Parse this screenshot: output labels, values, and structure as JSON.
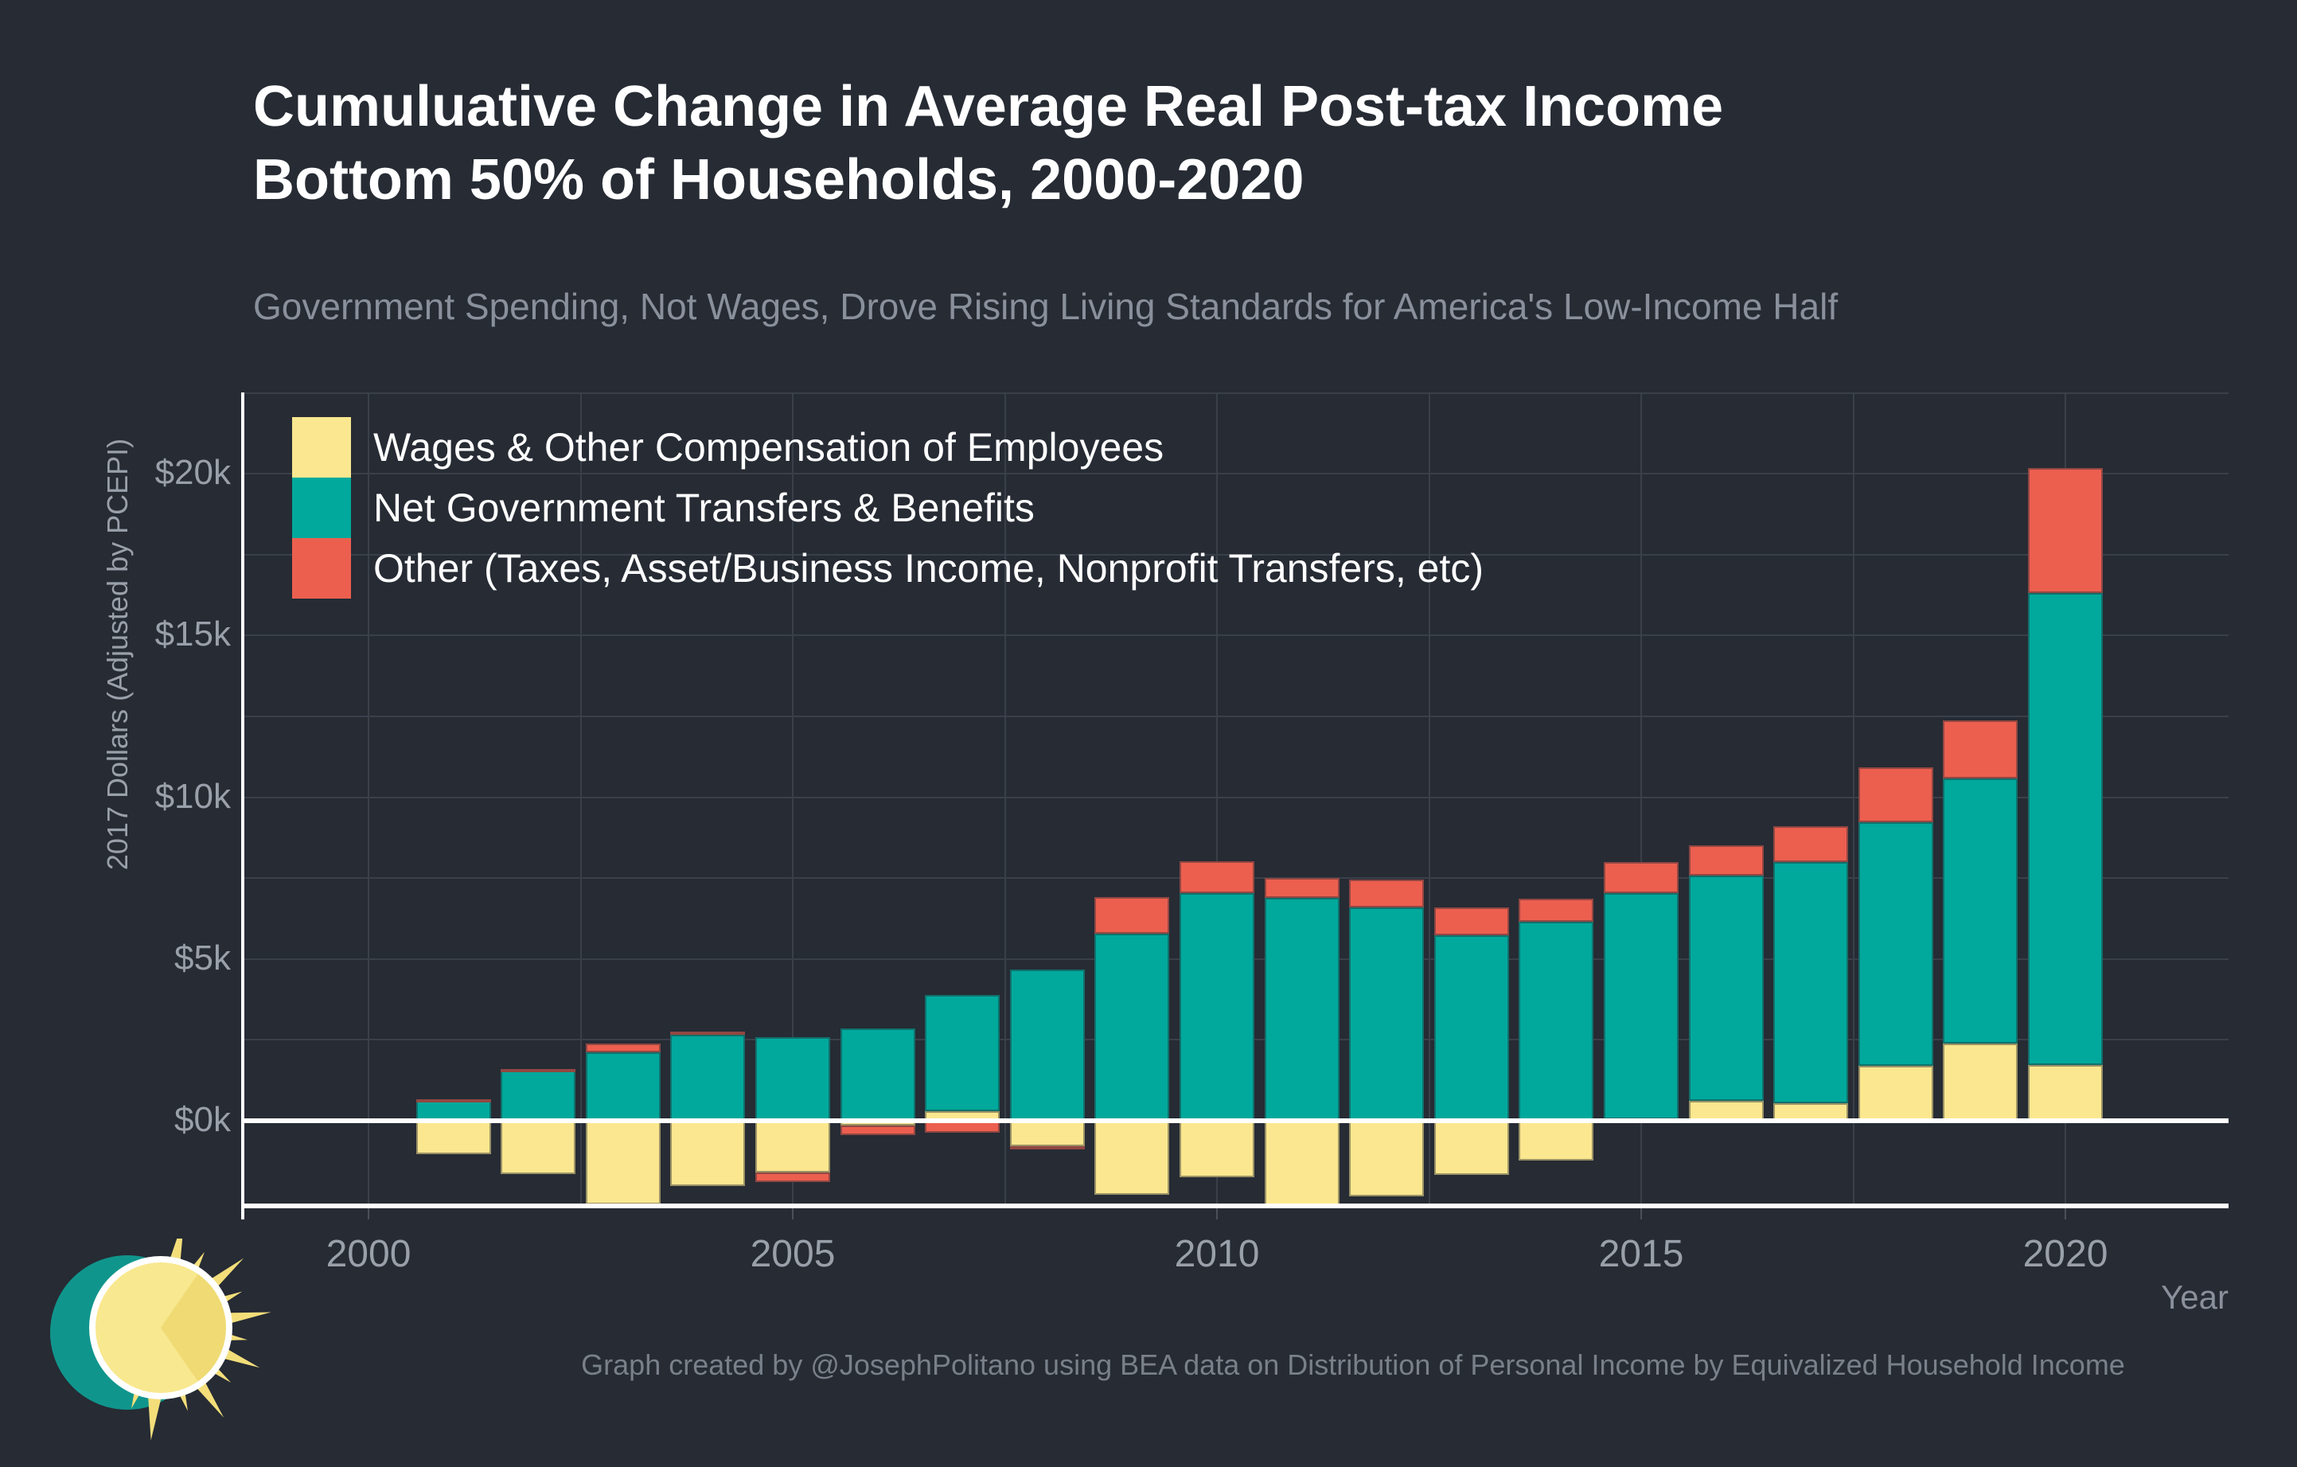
{
  "header": {
    "title_line1": "Cumuluative Change in Average Real Post-tax Income",
    "title_line2": "Bottom 50% of Households, 2000-2020",
    "subtitle": "Government Spending, Not Wages, Drove Rising Living Standards for America's Low-Income Half"
  },
  "legend": {
    "items": [
      {
        "key": "wages",
        "label": "Wages & Other Compensation of Employees",
        "color": "#FBE78F"
      },
      {
        "key": "transfers",
        "label": "Net Government Transfers & Benefits",
        "color": "#00A99C"
      },
      {
        "key": "other",
        "label": "Other (Taxes, Asset/Business Income, Nonprofit Transfers, etc)",
        "color": "#EC5F4F"
      }
    ]
  },
  "axes": {
    "y_title": "2017 Dollars (Adjusted by PCEPI)",
    "x_title": "Year",
    "y_tick_labels": [
      "$0k",
      "$5k",
      "$10k",
      "$15k",
      "$20k"
    ],
    "y_tick_values": [
      0,
      5,
      10,
      15,
      20
    ],
    "x_tick_labels": [
      "2000",
      "2005",
      "2010",
      "2015",
      "2020"
    ],
    "x_tick_values": [
      2000,
      2005,
      2010,
      2015,
      2020
    ]
  },
  "footer": {
    "credit": "Graph created by @JosephPolitano using BEA data on Distribution of Personal Income by Equivalized Household Income"
  },
  "colors": {
    "background": "#262B34",
    "gridline": "#3A404A",
    "axis_text": "#9AA0AA",
    "title_text": "#FFFFFF",
    "subtitle_text": "#8A909B",
    "footer_text": "#79808A",
    "zero_line": "#FFFFFF",
    "wages": "#FBE78F",
    "transfers": "#00A99C",
    "other": "#EC5F4F",
    "logo_teal": "#10958C",
    "logo_sun": "#F3DE7A"
  },
  "chart_data": {
    "type": "bar",
    "stacked": true,
    "title": "Cumuluative Change in Average Real Post-tax Income, Bottom 50% of Households, 2000-2020",
    "xlabel": "Year",
    "ylabel": "2017 Dollars (Adjusted by PCEPI)",
    "units": "thousands of 2017 dollars",
    "grid": true,
    "legend_position": "top-left",
    "baseline_year": 2000,
    "x": [
      2001,
      2002,
      2003,
      2004,
      2005,
      2006,
      2007,
      2008,
      2009,
      2010,
      2011,
      2012,
      2013,
      2014,
      2015,
      2016,
      2017,
      2018,
      2019,
      2020
    ],
    "series": [
      {
        "name": "Wages & Other Compensation of Employees",
        "values": [
          -1.03,
          -1.65,
          -2.59,
          -2.02,
          -1.6,
          -0.15,
          0.3,
          -0.79,
          -2.29,
          -1.75,
          -2.63,
          -2.34,
          -1.67,
          -1.23,
          0.05,
          0.62,
          0.55,
          1.7,
          2.39,
          1.72
        ]
      },
      {
        "name": "Net Government Transfers & Benefits",
        "values": [
          0.62,
          1.55,
          2.12,
          2.65,
          2.59,
          2.86,
          3.59,
          4.68,
          5.79,
          7.04,
          6.89,
          6.6,
          5.74,
          6.16,
          6.99,
          6.96,
          7.45,
          7.53,
          8.19,
          14.6
        ]
      },
      {
        "name": "Other (Taxes, Asset/Business Income, Nonprofit Transfers, etc)",
        "values": [
          0.05,
          0.05,
          0.27,
          0.1,
          -0.3,
          -0.3,
          -0.37,
          -0.07,
          1.13,
          0.98,
          0.62,
          0.86,
          0.86,
          0.71,
          0.96,
          0.94,
          1.11,
          1.7,
          1.8,
          3.86
        ]
      }
    ],
    "ylim": [
      -2.7,
      22.5
    ],
    "xlim": [
      1998.5,
      2022
    ],
    "y_grid_step": 2.5,
    "x_grid_step": 2.5
  }
}
